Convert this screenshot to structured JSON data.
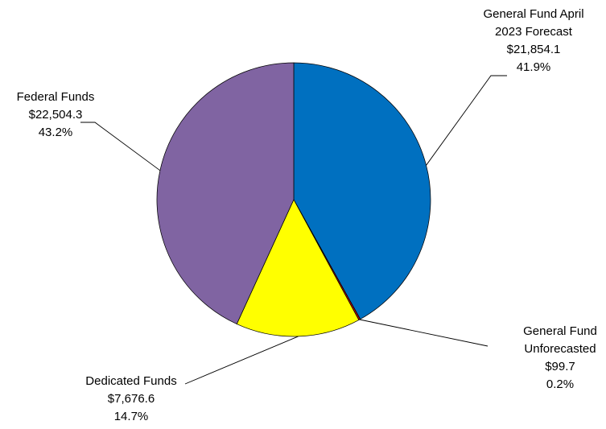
{
  "chart_data": {
    "type": "pie",
    "title": "",
    "start_angle_deg": 0,
    "direction": "clockwise",
    "slices": [
      {
        "name_lines": [
          "General Fund April",
          "2023 Forecast"
        ],
        "amount": "$21,854.1",
        "percent_label": "41.9%",
        "value": 21854.1,
        "color": "#0070C0"
      },
      {
        "name_lines": [
          "General Fund",
          "Unforecasted"
        ],
        "amount": "$99.7",
        "percent_label": "0.2%",
        "value": 99.7,
        "color": "#C00000"
      },
      {
        "name_lines": [
          "Dedicated Funds"
        ],
        "amount": "$7,676.6",
        "percent_label": "14.7%",
        "value": 7676.6,
        "color": "#FFFF00"
      },
      {
        "name_lines": [
          "Federal Funds"
        ],
        "amount": "$22,504.3",
        "percent_label": "43.2%",
        "value": 22504.3,
        "color": "#8064A2"
      }
    ]
  }
}
